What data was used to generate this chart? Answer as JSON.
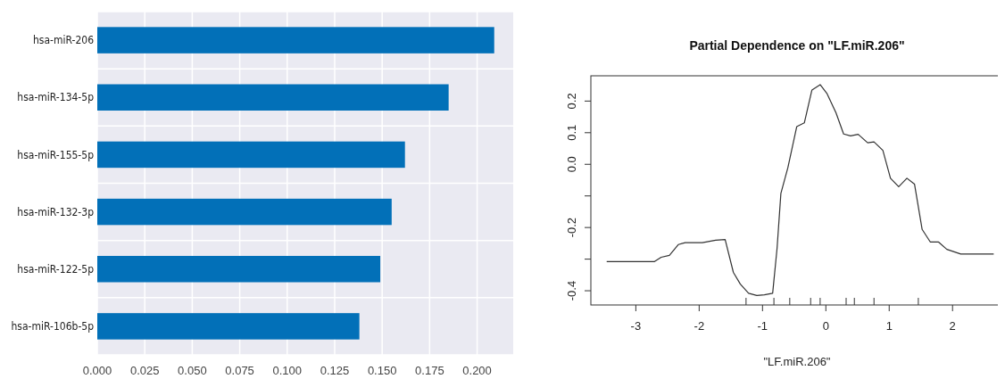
{
  "chart_data": [
    {
      "type": "bar",
      "orientation": "horizontal",
      "categories": [
        "hsa-miR-206",
        "hsa-miR-134-5p",
        "hsa-miR-155-5p",
        "hsa-miR-132-3p",
        "hsa-miR-122-5p",
        "hsa-miR-106b-5p"
      ],
      "values": [
        0.209,
        0.185,
        0.162,
        0.155,
        0.149,
        0.138
      ],
      "color": "#0270b8",
      "xlim": [
        0,
        0.219
      ],
      "xticks": [
        {
          "value": 0,
          "label": "0.000"
        },
        {
          "value": 0.025,
          "label": "0.025"
        },
        {
          "value": 0.05,
          "label": "0.050"
        },
        {
          "value": 0.075,
          "label": "0.075"
        },
        {
          "value": 0.1,
          "label": "0.100"
        },
        {
          "value": 0.125,
          "label": "0.125"
        },
        {
          "value": 0.15,
          "label": "0.150"
        },
        {
          "value": 0.175,
          "label": "0.175"
        },
        {
          "value": 0.2,
          "label": "0.200"
        }
      ],
      "grid": true
    },
    {
      "type": "line",
      "title": "Partial Dependence on \"LF.miR.206\"",
      "xlabel": "\"LF.miR.206\"",
      "color": "#333333",
      "x": [
        -3.46,
        -2.71,
        -2.6,
        -2.47,
        -2.33,
        -2.22,
        -1.95,
        -1.74,
        -1.59,
        -1.46,
        -1.35,
        -1.22,
        -1.09,
        -0.97,
        -0.84,
        -0.77,
        -0.71,
        -0.6,
        -0.46,
        -0.34,
        -0.22,
        -0.09,
        0.02,
        0.16,
        0.28,
        0.39,
        0.51,
        0.66,
        0.76,
        0.9,
        1.02,
        1.15,
        1.28,
        1.4,
        1.52,
        1.65,
        1.78,
        1.91,
        2.13,
        2.65
      ],
      "values": [
        -0.308,
        -0.308,
        -0.294,
        -0.288,
        -0.254,
        -0.248,
        -0.248,
        -0.24,
        -0.238,
        -0.342,
        -0.379,
        -0.408,
        -0.415,
        -0.413,
        -0.408,
        -0.265,
        -0.092,
        -0.011,
        0.119,
        0.131,
        0.235,
        0.252,
        0.223,
        0.163,
        0.096,
        0.09,
        0.095,
        0.068,
        0.071,
        0.044,
        -0.044,
        -0.071,
        -0.044,
        -0.063,
        -0.206,
        -0.246,
        -0.246,
        -0.269,
        -0.284,
        -0.284
      ],
      "xlim": [
        -3.71,
        2.8
      ],
      "ylim": [
        -0.445,
        0.28
      ],
      "xticks": [
        -3,
        -2,
        -1,
        0,
        1,
        2,
        {
          "value": -1.26,
          "label": null
        },
        {
          "value": -0.82,
          "label": null
        },
        {
          "value": -0.57,
          "label": null
        },
        {
          "value": -0.24,
          "label": null
        },
        {
          "value": -0.09,
          "label": null
        },
        {
          "value": 0.32,
          "label": null
        },
        {
          "value": 0.45,
          "label": null
        },
        {
          "value": 0.76,
          "label": null
        },
        {
          "value": 1.46,
          "label": null
        }
      ],
      "yticks": [
        {
          "value": -0.4,
          "label": "-0.4"
        },
        {
          "value": -0.3,
          "label": null
        },
        {
          "value": -0.2,
          "label": "-0.2"
        },
        {
          "value": -0.1,
          "label": null
        },
        {
          "value": 0,
          "label": "0.0"
        },
        {
          "value": 0.1,
          "label": "0.1"
        },
        {
          "value": 0.2,
          "label": "0.2"
        }
      ],
      "grid": false,
      "marker": "none",
      "line_style": "solid"
    }
  ]
}
